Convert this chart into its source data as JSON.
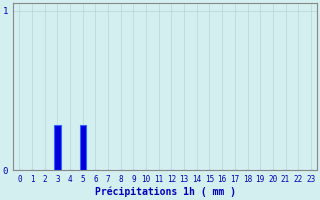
{
  "xlabel": "Précipitations 1h ( mm )",
  "ylabel": "",
  "xlim": [
    -0.5,
    23.5
  ],
  "ylim": [
    0,
    1.05
  ],
  "yticks": [
    0,
    1
  ],
  "xtick_labels": [
    "0",
    "1",
    "2",
    "3",
    "4",
    "5",
    "6",
    "7",
    "8",
    "9",
    "10",
    "11",
    "12",
    "13",
    "14",
    "15",
    "16",
    "17",
    "18",
    "19",
    "20",
    "21",
    "22",
    "23"
  ],
  "bar_values": [
    0,
    0,
    0,
    0.28,
    0,
    0.28,
    0,
    0,
    0,
    0,
    0,
    0,
    0,
    0,
    0,
    0,
    0,
    0,
    0,
    0,
    0,
    0,
    0,
    0
  ],
  "bar_color": "#0000dd",
  "bar_edge_color": "#3366ff",
  "background_color": "#d4efef",
  "grid_color": "#b8d4d4",
  "axis_color": "#888888",
  "text_color": "#0000bb",
  "tick_fontsize": 5.5,
  "xlabel_fontsize": 7,
  "bar_width": 0.5
}
